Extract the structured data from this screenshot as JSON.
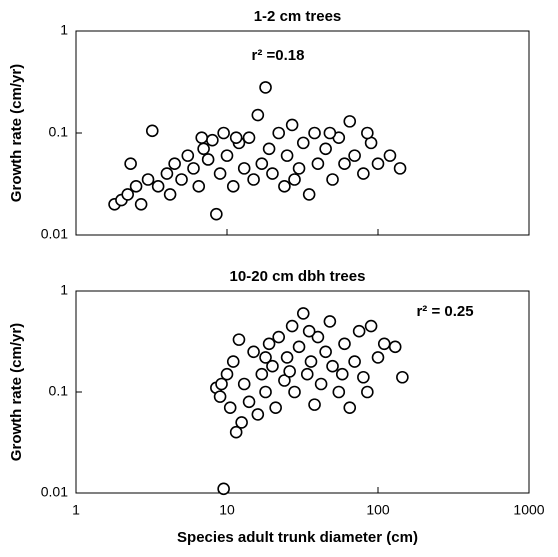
{
  "chart_data": [
    {
      "type": "scatter",
      "title": "1-2 cm trees",
      "annotation": "r² =0.18",
      "ylabel": "Growth rate (cm/yr)",
      "log_x": true,
      "log_y": true,
      "xlim": [
        1,
        1000
      ],
      "ylim": [
        0.01,
        1
      ],
      "xticks": [
        1,
        10,
        100,
        1000
      ],
      "yticks": [
        0.01,
        0.1,
        1
      ],
      "marker_color": "#000000",
      "x": [
        1.8,
        2,
        2.2,
        2.5,
        2.7,
        3,
        3.2,
        3.5,
        4,
        4.5,
        5,
        5.5,
        6,
        6.5,
        7,
        7.5,
        8,
        8.5,
        9,
        9.5,
        10,
        11,
        12,
        13,
        14,
        15,
        16,
        17,
        18,
        19,
        20,
        22,
        24,
        25,
        27,
        30,
        32,
        35,
        38,
        40,
        45,
        50,
        55,
        60,
        65,
        70,
        80,
        90,
        100,
        120,
        140,
        2.3,
        4.2,
        6.8,
        11.5,
        28,
        48,
        85
      ],
      "values": [
        0.02,
        0.022,
        0.025,
        0.03,
        0.02,
        0.035,
        0.105,
        0.03,
        0.04,
        0.05,
        0.035,
        0.06,
        0.045,
        0.03,
        0.07,
        0.055,
        0.085,
        0.016,
        0.04,
        0.1,
        0.06,
        0.03,
        0.08,
        0.045,
        0.09,
        0.035,
        0.15,
        0.05,
        0.28,
        0.07,
        0.04,
        0.1,
        0.03,
        0.06,
        0.12,
        0.045,
        0.08,
        0.025,
        0.1,
        0.05,
        0.07,
        0.035,
        0.09,
        0.05,
        0.13,
        0.06,
        0.04,
        0.08,
        0.05,
        0.06,
        0.045,
        0.05,
        0.025,
        0.09,
        0.09,
        0.035,
        0.1,
        0.1
      ]
    },
    {
      "type": "scatter",
      "title": "10-20 cm dbh trees",
      "annotation": "r² = 0.25",
      "ylabel": "Growth rate (cm/yr)",
      "xlabel": "Species adult trunk diameter (cm)",
      "log_x": true,
      "log_y": true,
      "xlim": [
        1,
        1000
      ],
      "ylim": [
        0.01,
        1
      ],
      "xticks": [
        1,
        10,
        100,
        1000
      ],
      "yticks": [
        0.01,
        0.1,
        1
      ],
      "marker_color": "#000000",
      "x": [
        8.5,
        9,
        9.5,
        10,
        10.5,
        11,
        11.5,
        12,
        13,
        14,
        15,
        16,
        17,
        18,
        19,
        20,
        21,
        22,
        24,
        25,
        27,
        28,
        30,
        32,
        34,
        36,
        38,
        40,
        42,
        45,
        48,
        50,
        55,
        60,
        65,
        70,
        75,
        80,
        90,
        100,
        110,
        130,
        145,
        9.2,
        12.5,
        18,
        26,
        35,
        58,
        85
      ],
      "values": [
        0.11,
        0.09,
        0.011,
        0.15,
        0.07,
        0.2,
        0.04,
        0.33,
        0.12,
        0.08,
        0.25,
        0.06,
        0.15,
        0.1,
        0.3,
        0.18,
        0.07,
        0.35,
        0.13,
        0.22,
        0.45,
        0.1,
        0.28,
        0.6,
        0.15,
        0.2,
        0.075,
        0.35,
        0.12,
        0.25,
        0.5,
        0.18,
        0.1,
        0.3,
        0.07,
        0.2,
        0.4,
        0.14,
        0.45,
        0.22,
        0.3,
        0.28,
        0.14,
        0.12,
        0.05,
        0.22,
        0.16,
        0.4,
        0.15,
        0.1
      ]
    }
  ]
}
